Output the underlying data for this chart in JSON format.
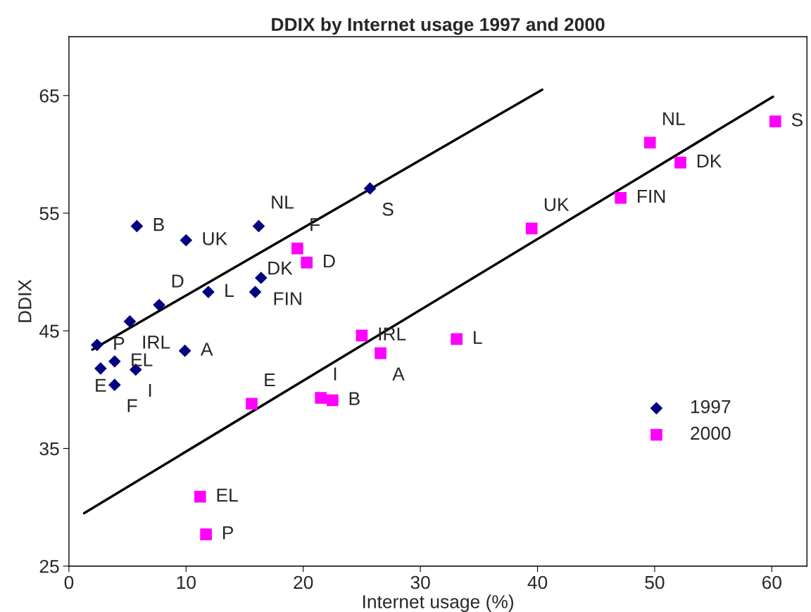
{
  "chart_data": {
    "type": "scatter",
    "title": "DDIX by Internet usage 1997 and 2000",
    "xlabel": "Internet usage (%)",
    "ylabel": "DDIX",
    "xlim": [
      0,
      63
    ],
    "ylim": [
      25,
      70
    ],
    "xticks": [
      0,
      10,
      20,
      30,
      40,
      50,
      60
    ],
    "yticks": [
      25,
      35,
      45,
      55,
      65
    ],
    "grid": false,
    "legend": "bottom right",
    "series": [
      {
        "name": "1997",
        "color": "#000080",
        "marker": "diamond",
        "x": [
          5.8,
          10.0,
          16.2,
          25.7,
          3.9,
          7.7,
          11.9,
          16.4,
          15.9,
          5.2,
          2.4,
          9.9,
          3.9,
          2.7,
          5.7
        ],
        "values": [
          53.9,
          52.7,
          53.9,
          57.1,
          40.4,
          47.2,
          48.3,
          49.5,
          48.3,
          45.8,
          43.8,
          43.3,
          42.4,
          41.8,
          41.7
        ]
      },
      {
        "name": "2000",
        "color": "#ff00ff",
        "marker": "square",
        "x": [
          60.3,
          49.6,
          52.2,
          47.1,
          39.5,
          19.5,
          20.3,
          25.0,
          26.6,
          33.1,
          15.6,
          21.5,
          22.5,
          11.2,
          11.7
        ],
        "values": [
          62.8,
          61.0,
          59.3,
          56.3,
          53.7,
          52.0,
          50.8,
          44.6,
          43.1,
          44.3,
          38.8,
          39.3,
          39.1,
          30.9,
          27.7
        ]
      },
      {
        "type": "line",
        "color": "#000000",
        "marker": "none",
        "x": [
          2.0,
          40.4
        ],
        "values": [
          43.4,
          65.5
        ]
      },
      {
        "type": "line",
        "color": "#000000",
        "marker": "none",
        "x": [
          1.3,
          60.1
        ],
        "values": [
          29.5,
          64.9
        ]
      }
    ],
    "annotations": [
      {
        "text": "B",
        "x": 5.8,
        "y": 53.9
      },
      {
        "text": "UK",
        "x": 10.0,
        "y": 52.7
      },
      {
        "text": "NL",
        "x": 16.2,
        "y": 53.9
      },
      {
        "text": "S",
        "x": 25.7,
        "y": 57.1
      },
      {
        "text": "F",
        "x": 3.9,
        "y": 40.4
      },
      {
        "text": "D",
        "x": 7.7,
        "y": 47.2
      },
      {
        "text": "L",
        "x": 11.9,
        "y": 48.3
      },
      {
        "text": "FIN",
        "x": 16.4,
        "y": 49.5
      },
      {
        "text": "DK",
        "x": 15.9,
        "y": 48.3
      },
      {
        "text": "IRL",
        "x": 5.2,
        "y": 45.8
      },
      {
        "text": "P",
        "x": 2.4,
        "y": 43.8
      },
      {
        "text": "A",
        "x": 9.9,
        "y": 43.3
      },
      {
        "text": "EL",
        "x": 3.9,
        "y": 42.4
      },
      {
        "text": "E",
        "x": 2.7,
        "y": 41.8
      },
      {
        "text": "I",
        "x": 5.7,
        "y": 41.7
      },
      {
        "text": "S",
        "x": 60.3,
        "y": 62.8
      },
      {
        "text": "NL",
        "x": 49.6,
        "y": 61.0
      },
      {
        "text": "DK",
        "x": 52.2,
        "y": 59.3
      },
      {
        "text": "FIN",
        "x": 47.1,
        "y": 56.3
      },
      {
        "text": "UK",
        "x": 39.5,
        "y": 53.7
      },
      {
        "text": "F",
        "x": 19.5,
        "y": 52.0
      },
      {
        "text": "D",
        "x": 20.3,
        "y": 50.8
      },
      {
        "text": "IRL",
        "x": 25.0,
        "y": 44.6
      },
      {
        "text": "A",
        "x": 26.6,
        "y": 43.1
      },
      {
        "text": "L",
        "x": 33.1,
        "y": 44.3
      },
      {
        "text": "E",
        "x": 15.6,
        "y": 38.8
      },
      {
        "text": "I",
        "x": 21.5,
        "y": 39.3
      },
      {
        "text": "B",
        "x": 22.5,
        "y": 39.1
      },
      {
        "text": "EL",
        "x": 11.2,
        "y": 30.9
      },
      {
        "text": "P",
        "x": 11.7,
        "y": 27.7
      }
    ]
  }
}
